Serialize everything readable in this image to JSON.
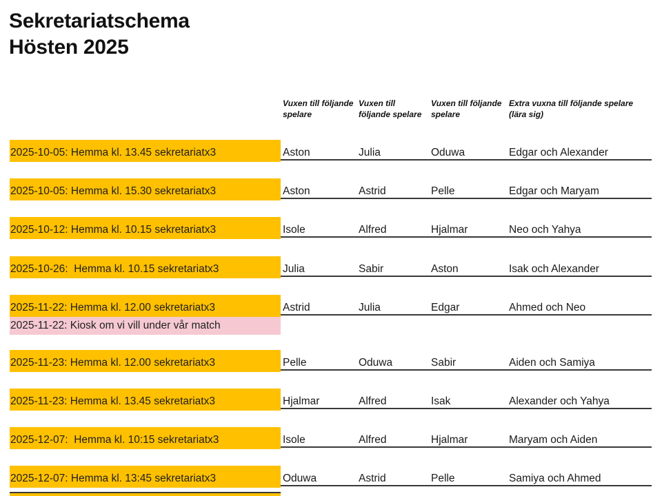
{
  "title": {
    "line1": "Sekretariatschema",
    "line2": "Hösten 2025"
  },
  "table": {
    "headers": [
      "Vuxen till följande spelare",
      "Vuxen till följande spelare",
      "Vuxen till följande spelare",
      "Extra vuxna till följande spelare (lära sig)"
    ],
    "rows": [
      {
        "date": "2025-10-05: Hemma kl. 13.45 sekretariatx3",
        "names": [
          "Aston",
          "Julia",
          "Oduwa",
          "Edgar och Alexander"
        ]
      },
      {
        "date": "2025-10-05: Hemma kl. 15.30 sekretariatx3",
        "names": [
          "Aston",
          "Astrid",
          "Pelle",
          "Edgar och Maryam"
        ]
      },
      {
        "date": "2025-10-12: Hemma kl. 10.15 sekretariatx3",
        "names": [
          "Isole",
          "Alfred",
          "Hjalmar",
          "Neo och Yahya"
        ]
      },
      {
        "date": "2025-10-26:  Hemma kl. 10.15 sekretariatx3",
        "names": [
          "Julia",
          "Sabir",
          "Aston",
          "Isak och Alexander"
        ]
      },
      {
        "date": "2025-11-22: Hemma kl. 12.00 sekretariatx3",
        "names": [
          "Astrid",
          "Julia",
          "Edgar",
          "Ahmed och Neo"
        ]
      },
      {
        "date": "2025-11-23: Hemma kl. 12.00 sekretariatx3",
        "names": [
          "Pelle",
          "Oduwa",
          "Sabir",
          "Aiden och Samiya"
        ]
      },
      {
        "date": "2025-11-23: Hemma kl. 13.45 sekretariatx3",
        "names": [
          "Hjalmar",
          "Alfred",
          "Isak",
          "Alexander och Yahya"
        ]
      },
      {
        "date": "2025-12-07:  Hemma kl. 10:15 sekretariatx3",
        "names": [
          "Isole",
          "Alfred",
          "Hjalmar",
          "Maryam och Aiden"
        ]
      },
      {
        "date": "2025-12-07: Hemma kl. 13:45 sekretariatx3",
        "names": [
          "Oduwa",
          "Astrid",
          "Pelle",
          "Samiya och Ahmed"
        ]
      }
    ],
    "note": {
      "text": "2025-11-22: Kiosk om vi vill under vår match",
      "after_row_index": 4
    },
    "partial_next_row_visible": true
  },
  "colors": {
    "highlight_yellow": "#FFC000",
    "highlight_pink": "#F6C9D2",
    "row_line": "#383838",
    "text": "#1A1A1A"
  }
}
